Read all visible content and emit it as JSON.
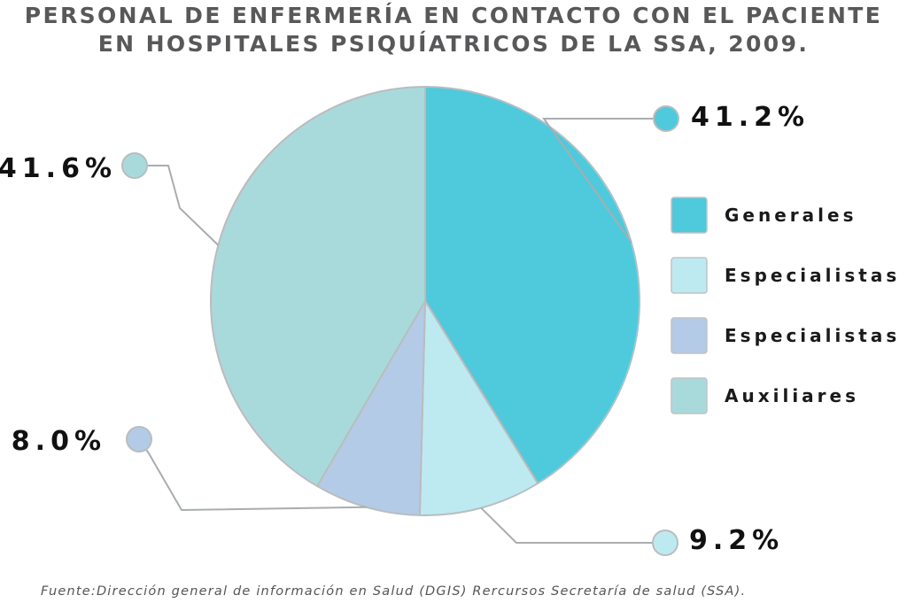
{
  "chart_data": {
    "type": "pie",
    "title_lines": [
      "PERSONAL DE ENFERMERÍA EN CONTACTO CON EL PACIENTE",
      "EN HOSPITALES PSIQUÍATRICOS DE LA SSA, 2009."
    ],
    "slices": [
      {
        "name": "Generales",
        "value": 41.2,
        "label": "41.2%",
        "color": "#4ecadc"
      },
      {
        "name": "Especialistas",
        "value": 9.2,
        "label": "9.2%",
        "color": "#bdeaf0"
      },
      {
        "name": "Especialistas",
        "value": 8.0,
        "label": "8.0%",
        "color": "#b3cbe6"
      },
      {
        "name": "Auxiliares",
        "value": 41.6,
        "label": "41.6%",
        "color": "#a8dadb"
      }
    ],
    "legend_position": "right",
    "source": "Fuente:Dirección general de información en Salud (DGIS) Rercursos Secretaría de salud (SSA)."
  }
}
